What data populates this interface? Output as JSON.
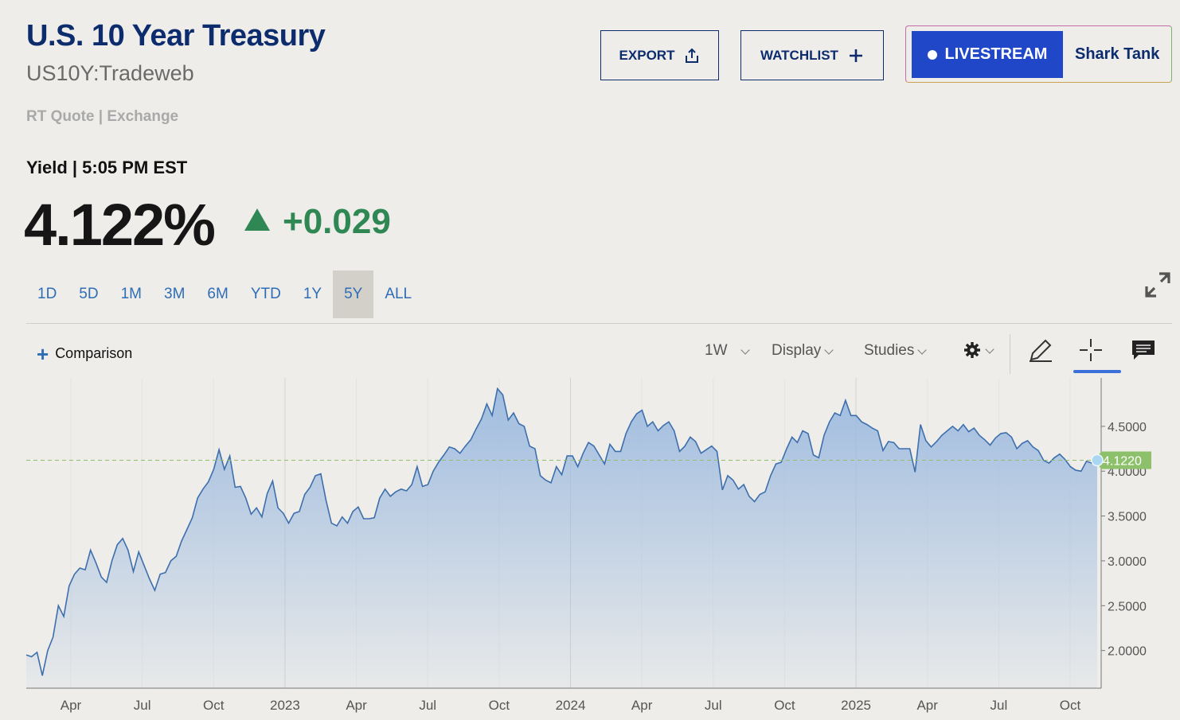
{
  "header": {
    "title": "U.S. 10 Year Treasury",
    "symbol": "US10Y:Tradeweb",
    "quote_type": "RT Quote | Exchange"
  },
  "actions": {
    "export_label": "EXPORT",
    "watchlist_label": "WATCHLIST",
    "livestream_label": "LIVESTREAM",
    "promo_label": "Shark Tank"
  },
  "quote": {
    "yield_label": "Yield | 5:05 PM EST",
    "price": "4.122%",
    "change": "+0.029",
    "direction": "up",
    "up_color": "#2f8753"
  },
  "ranges": [
    "1D",
    "5D",
    "1M",
    "3M",
    "6M",
    "YTD",
    "1Y",
    "5Y",
    "ALL"
  ],
  "active_range": "5Y",
  "toolbar": {
    "comparison_label": "Comparison",
    "interval": "1W",
    "display_label": "Display",
    "studies_label": "Studies",
    "icons": [
      "settings-icon",
      "pencil-icon",
      "crosshair-icon",
      "comment-icon"
    ]
  },
  "chart_data": {
    "type": "area",
    "x_tick_labels": [
      "Apr",
      "Jul",
      "Oct",
      "2023",
      "Apr",
      "Jul",
      "Oct",
      "2024",
      "Apr",
      "Jul",
      "Oct",
      "2025",
      "Apr",
      "Jul",
      "Oct"
    ],
    "y_tick_labels": [
      "4.5000",
      "4.0000",
      "3.5000",
      "3.0000",
      "2.5000",
      "2.0000"
    ],
    "ylim": [
      1.58,
      5.04
    ],
    "current_value_label": "4.1220",
    "current_value": 4.122,
    "series_color": "#3e6fad",
    "fill_color": "#9cbadf",
    "current_label_color": "#8dc06a",
    "grid": true,
    "y_axis_position": "right",
    "series": [
      {
        "values": [
          1.95,
          1.93,
          1.98,
          1.72,
          2.0,
          2.15,
          2.5,
          2.38,
          2.72,
          2.85,
          2.92,
          2.9,
          3.12,
          2.98,
          2.82,
          2.76,
          3.0,
          3.18,
          3.25,
          3.12,
          2.88,
          3.1,
          2.95,
          2.8,
          2.67,
          2.85,
          2.87,
          3.0,
          3.05,
          3.22,
          3.35,
          3.48,
          3.7,
          3.8,
          3.88,
          4.02,
          4.24,
          4.02,
          4.17,
          3.82,
          3.83,
          3.7,
          3.52,
          3.59,
          3.49,
          3.75,
          3.89,
          3.59,
          3.53,
          3.42,
          3.53,
          3.55,
          3.74,
          3.82,
          3.95,
          3.97,
          3.67,
          3.42,
          3.39,
          3.49,
          3.42,
          3.55,
          3.6,
          3.47,
          3.47,
          3.48,
          3.7,
          3.8,
          3.72,
          3.77,
          3.8,
          3.78,
          3.85,
          4.05,
          3.83,
          3.85,
          4.0,
          4.1,
          4.18,
          4.27,
          4.25,
          4.2,
          4.28,
          4.35,
          4.47,
          4.58,
          4.75,
          4.62,
          4.92,
          4.85,
          4.57,
          4.65,
          4.53,
          4.5,
          4.28,
          4.25,
          3.95,
          3.9,
          3.87,
          4.05,
          3.96,
          4.17,
          4.17,
          4.05,
          4.2,
          4.32,
          4.28,
          4.18,
          4.08,
          4.3,
          4.22,
          4.22,
          4.42,
          4.55,
          4.64,
          4.68,
          4.5,
          4.55,
          4.45,
          4.51,
          4.55,
          4.45,
          4.22,
          4.28,
          4.38,
          4.33,
          4.2,
          4.24,
          4.28,
          4.22,
          3.79,
          3.95,
          3.9,
          3.8,
          3.85,
          3.72,
          3.66,
          3.74,
          3.77,
          3.95,
          4.08,
          4.1,
          4.25,
          4.38,
          4.32,
          4.45,
          4.42,
          4.18,
          4.15,
          4.4,
          4.55,
          4.65,
          4.62,
          4.79,
          4.62,
          4.62,
          4.55,
          4.52,
          4.48,
          4.45,
          4.23,
          4.33,
          4.32,
          4.25,
          4.25,
          4.25,
          3.99,
          4.52,
          4.34,
          4.27,
          4.33,
          4.4,
          4.45,
          4.5,
          4.45,
          4.52,
          4.44,
          4.48,
          4.4,
          4.35,
          4.29,
          4.37,
          4.42,
          4.43,
          4.38,
          4.25,
          4.31,
          4.34,
          4.27,
          4.23,
          4.12,
          4.09,
          4.15,
          4.19,
          4.13,
          4.05,
          4.01,
          4.0,
          4.11,
          4.09,
          4.122
        ]
      }
    ]
  }
}
